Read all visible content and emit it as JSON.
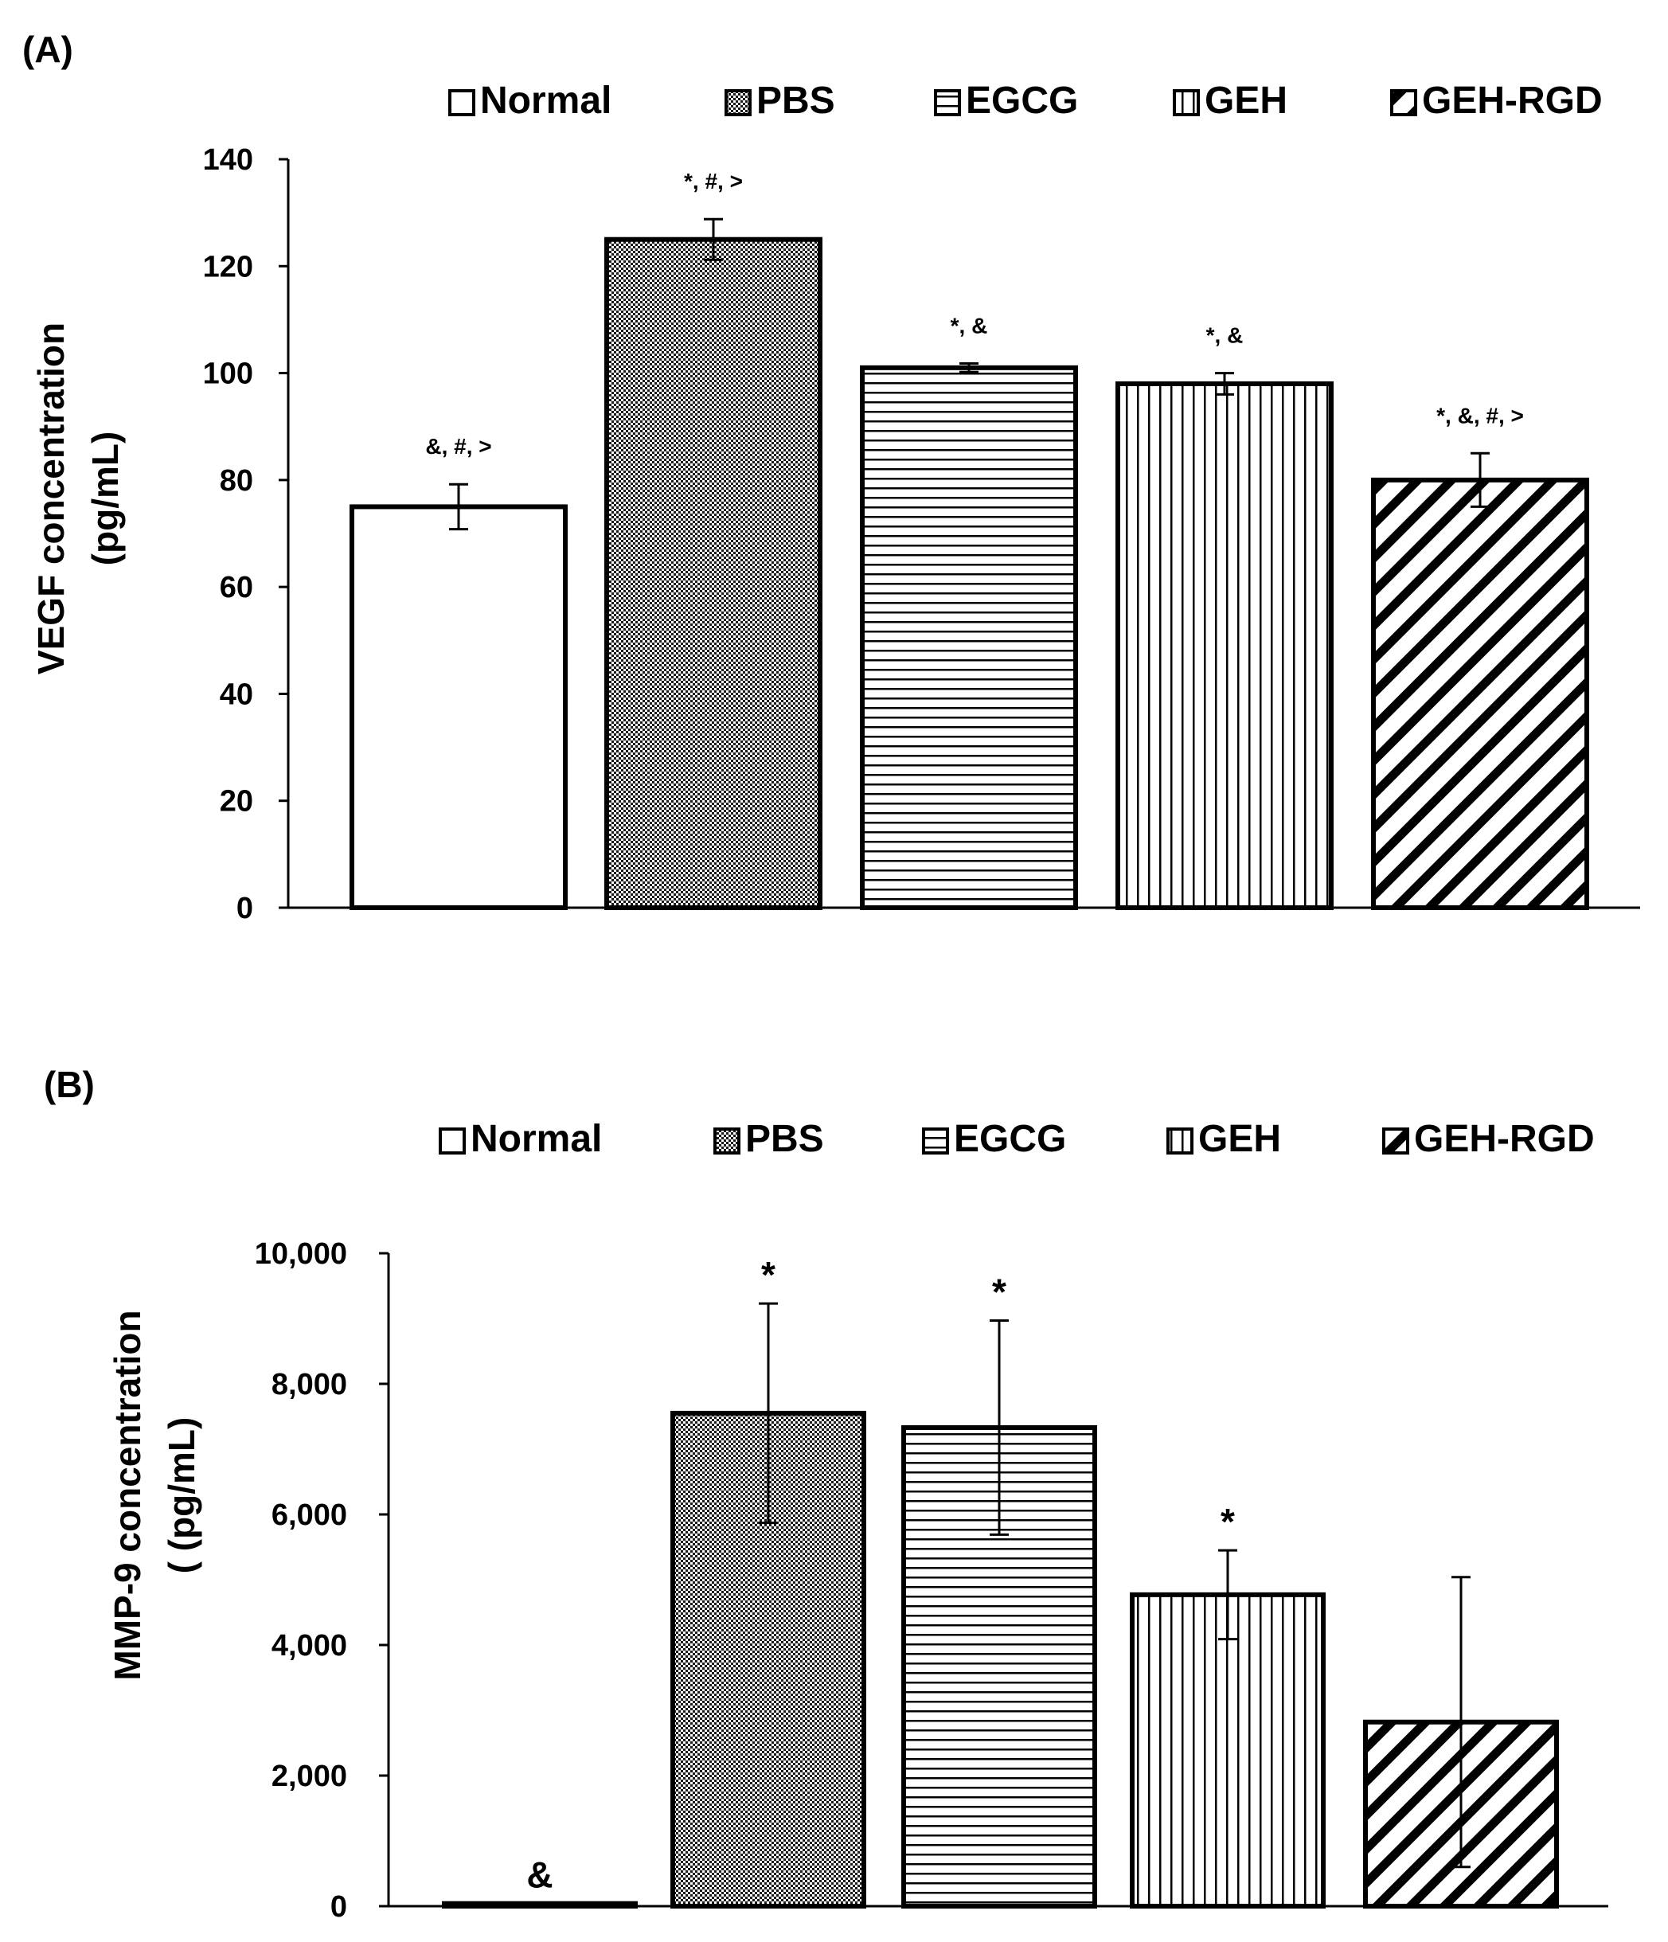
{
  "chart_data": [
    {
      "type": "bar",
      "panel_label": "(A)",
      "categories": [
        "Normal",
        "PBS",
        "EGCG",
        "GEH",
        "GEH-RGD"
      ],
      "values": [
        75,
        125,
        101,
        98,
        80
      ],
      "errors": [
        4.2,
        3.8,
        0.8,
        2.0,
        5.0
      ],
      "annotations": [
        "&, #, >",
        "*, #, >",
        "*, &",
        "*, &",
        "*, &, #, >"
      ],
      "ylabel_lines": [
        "VEGF concentration",
        "(pg/mL)"
      ],
      "xlabel": "",
      "ylim": [
        0,
        140
      ],
      "yticks": [
        0,
        20,
        40,
        60,
        80,
        100,
        120,
        140
      ],
      "ytick_labels": [
        "0",
        "20",
        "40",
        "60",
        "80",
        "100",
        "120",
        "140"
      ],
      "legend": [
        "Normal",
        "PBS",
        "EGCG",
        "GEH",
        "GEH-RGD"
      ],
      "legend_position": "top",
      "grid": false
    },
    {
      "type": "bar",
      "panel_label": "(B)",
      "categories": [
        "Normal",
        "PBS",
        "EGCG",
        "GEH",
        "GEH-RGD"
      ],
      "values": [
        40,
        7550,
        7330,
        4770,
        2820
      ],
      "errors": [
        0,
        1680,
        1640,
        680,
        2220
      ],
      "annotations": [
        "&",
        "*",
        "*",
        "*",
        ""
      ],
      "ylabel_lines": [
        "MMP-9 concentration",
        "( (pg/mL)"
      ],
      "xlabel": "",
      "ylim": [
        0,
        10000
      ],
      "yticks": [
        0,
        2000,
        4000,
        6000,
        8000,
        10000
      ],
      "ytick_labels": [
        "0",
        "2,000",
        "4,000",
        "6,000",
        "8,000",
        "10,000"
      ],
      "legend": [
        "Normal",
        "PBS",
        "EGCG",
        "GEH",
        "GEH-RGD"
      ],
      "legend_position": "top",
      "grid": false
    }
  ]
}
